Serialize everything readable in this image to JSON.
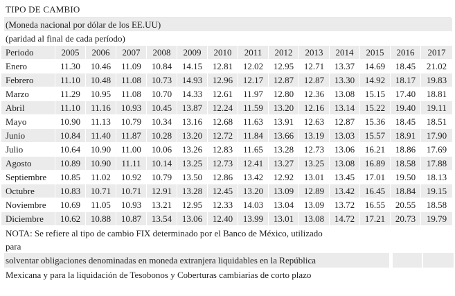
{
  "title": "TIPO DE CAMBIO",
  "subtitle": "(Moneda nacional por dólar de los EE.UU)",
  "subnote": "(paridad al final de cada período)",
  "table": {
    "header": [
      "Periodo",
      "2005",
      "2006",
      "2007",
      "2008",
      "2009",
      "2010",
      "2011",
      "2012",
      "2013",
      "2014",
      "2015",
      "2016",
      "2017"
    ],
    "rows": [
      [
        "Enero",
        "11.30",
        "10.46",
        "11.09",
        "10.84",
        "14.15",
        "12.81",
        "12.02",
        "12.95",
        "12.71",
        "13.37",
        "14.69",
        "18.45",
        "21.02"
      ],
      [
        "Febrero",
        "11.10",
        "10.48",
        "11.08",
        "10.73",
        "14.93",
        "12.96",
        "12.17",
        "12.87",
        "12.87",
        "13.30",
        "14.92",
        "18.17",
        "19.83"
      ],
      [
        "Marzo",
        "11.29",
        "10.95",
        "11.08",
        "10.70",
        "14.33",
        "12.61",
        "11.97",
        "12.80",
        "12.36",
        "13.08",
        "15.15",
        "17.40",
        "18.81"
      ],
      [
        "Abril",
        "11.10",
        "11.16",
        "10.93",
        "10.45",
        "13.87",
        "12.24",
        "11.59",
        "13.20",
        "12.16",
        "13.14",
        "15.22",
        "19.40",
        "19.11"
      ],
      [
        "Mayo",
        "10.90",
        "11.13",
        "10.79",
        "10.34",
        "13.16",
        "12.68",
        "11.63",
        "13.91",
        "12.63",
        "12.87",
        "15.36",
        "18.45",
        "18.51"
      ],
      [
        "Junio",
        "10.84",
        "11.40",
        "11.87",
        "10.28",
        "13.20",
        "12.72",
        "11.84",
        "13.66",
        "13.19",
        "13.03",
        "15.57",
        "18.91",
        "17.90"
      ],
      [
        "Julio",
        "10.64",
        "10.90",
        "11.00",
        "10.06",
        "13.26",
        "12.83",
        "11.65",
        "13.28",
        "12.73",
        "13.06",
        "16.21",
        "18.86",
        "17.69"
      ],
      [
        "Agosto",
        "10.89",
        "10.90",
        "11.11",
        "10.14",
        "13.25",
        "12.73",
        "12.41",
        "13.27",
        "13.25",
        "13.08",
        "16.89",
        "18.58",
        "17.88"
      ],
      [
        "Septiembre",
        "10.85",
        "11.02",
        "10.92",
        "10.79",
        "13.50",
        "12.86",
        "13.42",
        "12.92",
        "13.01",
        "13.45",
        "17.01",
        "19.50",
        "18.13"
      ],
      [
        "Octubre",
        "10.83",
        "10.71",
        "10.71",
        "12.91",
        "13.28",
        "12.45",
        "13.20",
        "13.09",
        "12.89",
        "13.42",
        "16.45",
        "18.84",
        "19.15"
      ],
      [
        "Noviembre",
        "10.69",
        "11.05",
        "10.93",
        "13.21",
        "12.95",
        "12.33",
        "14.03",
        "13.04",
        "13.09",
        "13.72",
        "16.55",
        "20.55",
        "18.58"
      ],
      [
        "Diciembre",
        "10.62",
        "10.88",
        "10.87",
        "13.54",
        "13.06",
        "12.40",
        "13.99",
        "13.01",
        "13.08",
        "14.72",
        "17.21",
        "20.73",
        "19.79"
      ]
    ]
  },
  "notes": [
    "NOTA: Se refiere al tipo de cambio FIX determinado por el Banco de México, utilizado",
    "para",
    "solventar obligaciones denominadas en moneda extranjera liquidables en la República",
    "Mexicana y para la liquidación de Tesobonos y Coberturas cambiarias de corto plazo"
  ],
  "colors": {
    "shade": "#ebebeb",
    "text": "#222222",
    "background": "#ffffff"
  }
}
